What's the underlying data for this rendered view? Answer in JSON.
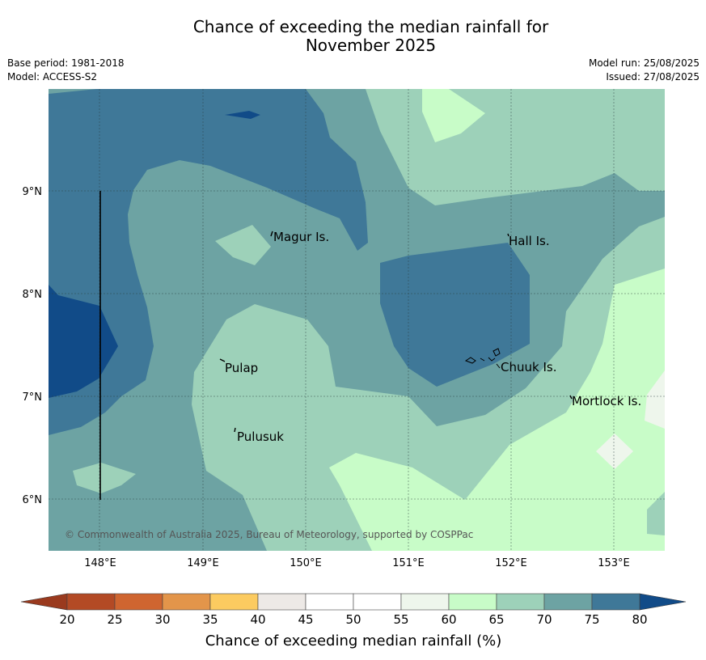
{
  "title_line1": "Chance of exceeding the median rainfall for",
  "title_line2": "November 2025",
  "meta": {
    "base_period": "Base period: 1981-2018",
    "model": "Model: ACCESS-S2",
    "model_run": "Model run: 25/08/2025",
    "issued": "Issued: 27/08/2025"
  },
  "axes": {
    "lat_ticks": [
      "9°N",
      "8°N",
      "7°N",
      "6°N"
    ],
    "lon_ticks": [
      "148°E",
      "149°E",
      "150°E",
      "151°E",
      "152°E",
      "153°E"
    ]
  },
  "places": [
    "Magur Is.",
    "Hall Is.",
    "Pulap",
    "Chuuk Is.",
    "Mortlock Is.",
    "Pulusuk"
  ],
  "copyright": "© Commonwealth of Australia 2025, Bureau of Meteorology, supported by COSPPac",
  "colorbar": {
    "title": "Chance of exceeding median rainfall (%)",
    "ticks": [
      "20",
      "25",
      "30",
      "35",
      "40",
      "45",
      "50",
      "55",
      "60",
      "65",
      "70",
      "75",
      "80"
    ],
    "colors": [
      "#b34a25",
      "#cf6530",
      "#e3954a",
      "#fccb60",
      "#ede9e6",
      "#ffffff",
      "#ffffff",
      "#eef6ec",
      "#c8fcc8",
      "#9dd1b9",
      "#6da3a3",
      "#3f7898"
    ],
    "under_color": "#9a3a1e",
    "over_color": "#114b88"
  },
  "map_colors": {
    "c80": "#114b88",
    "c75": "#3f7898",
    "c70": "#6da3a3",
    "c65": "#9dd1b9",
    "c60": "#c8fcc8",
    "c55": "#eef6ec"
  }
}
